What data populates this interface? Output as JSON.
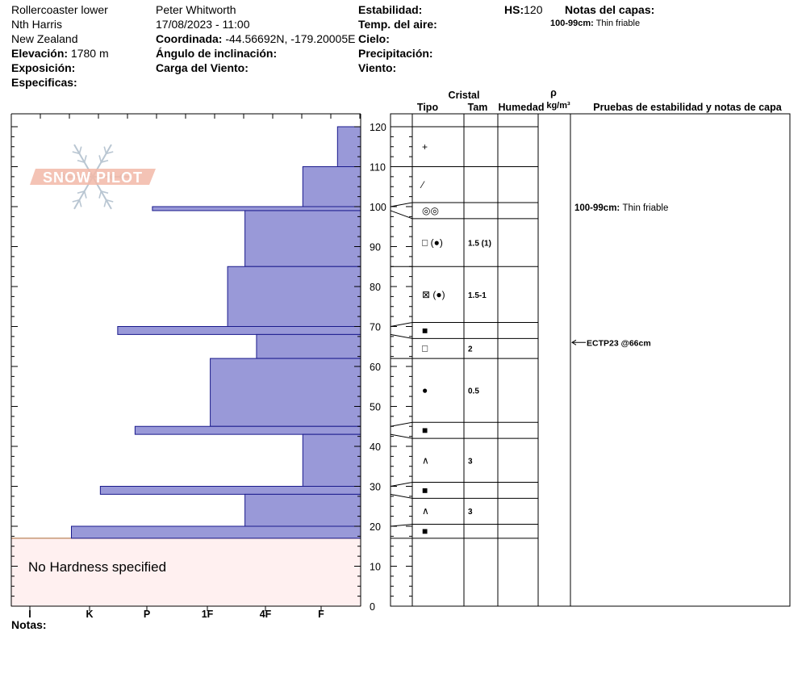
{
  "header": {
    "location": "Rollercoaster lower",
    "range": "Nth Harris",
    "country": "New Zealand",
    "elevation_label": "Elevación:",
    "elevation_value": "1780 m",
    "aspect_label": "Exposición:",
    "specifics_label": "Especificas:",
    "observer": "Peter Whitworth",
    "datetime": "17/08/2023 - 11:00",
    "coord_label": "Coordinada:",
    "coord_value": "-44.56692N, -179.20005E",
    "slope_label": "Ángulo de inclinación:",
    "wind_load_label": "Carga del Viento:",
    "stability_label": "Estabilidad:",
    "air_temp_label": "Temp. del aire:",
    "sky_label": "Cielo:",
    "precip_label": "Precipitación:",
    "wind_label": "Viento:",
    "hs_label": "HS:",
    "hs_value": "120",
    "layer_notes_label": "Notas del capas:",
    "layer_notes_entry_range": "100-99cm:",
    "layer_notes_entry_text": "Thin friable"
  },
  "notes_label": "Notas:",
  "logo_text": "SNOW PILOT",
  "no_hardness_text": "No Hardness specified",
  "colors": {
    "bar_fill": "#9999d8",
    "bar_stroke": "#1a1a8c",
    "no_hardness_fill": "#fff0f0",
    "no_hardness_stroke": "#aa6633",
    "logo": "#f2b8a8"
  },
  "table_headers": {
    "cristal": "Cristal",
    "tipo": "Tipo",
    "tam": "Tam",
    "humedad": "Humedad",
    "rho": "ρ",
    "density_unit": "kg/m³",
    "tests": "Pruebas de estabilidad y notas de capa"
  },
  "chart_data": {
    "type": "bar",
    "orientation": "horizontal",
    "ylabel": "",
    "ylim": [
      0,
      125
    ],
    "y_ticks": [
      0,
      10,
      20,
      30,
      40,
      50,
      60,
      70,
      80,
      90,
      100,
      110,
      120
    ],
    "hardness_scale": [
      "I",
      "K",
      "P",
      "1F",
      "4F",
      "F"
    ],
    "hardness_positions": [
      5,
      4,
      3,
      2,
      1,
      0
    ],
    "no_hardness_range_cm": [
      0,
      17
    ],
    "layers": [
      {
        "top": 120,
        "bottom": 110,
        "hardness": 0.4
      },
      {
        "top": 110,
        "bottom": 100,
        "hardness": 1.0
      },
      {
        "top": 100,
        "bottom": 99,
        "hardness": 3.6
      },
      {
        "top": 99,
        "bottom": 85,
        "hardness": 2.0
      },
      {
        "top": 85,
        "bottom": 70,
        "hardness": 2.3
      },
      {
        "top": 70,
        "bottom": 68,
        "hardness": 4.2
      },
      {
        "top": 68,
        "bottom": 62,
        "hardness": 1.8
      },
      {
        "top": 62,
        "bottom": 45,
        "hardness": 2.6
      },
      {
        "top": 45,
        "bottom": 43,
        "hardness": 3.9
      },
      {
        "top": 43,
        "bottom": 30,
        "hardness": 1.0
      },
      {
        "top": 30,
        "bottom": 28,
        "hardness": 4.5
      },
      {
        "top": 28,
        "bottom": 20,
        "hardness": 2.0
      },
      {
        "top": 20,
        "bottom": 17,
        "hardness": 5.0
      }
    ],
    "crystal_rows": [
      {
        "top": 120,
        "bottom": 110,
        "symbol": "+",
        "size": "",
        "at": 115
      },
      {
        "top": 110,
        "bottom": 101,
        "symbol": "⁄",
        "size": "",
        "at": 105.5
      },
      {
        "top": 101,
        "bottom": 97,
        "symbol": "◎◎",
        "size": "",
        "at": 99
      },
      {
        "top": 97,
        "bottom": 85,
        "symbol": "□ (●)",
        "size": "1.5 (1)",
        "at": 91
      },
      {
        "top": 85,
        "bottom": 71,
        "symbol": "⊠ (●)",
        "size": "1.5-1",
        "at": 78
      },
      {
        "top": 71,
        "bottom": 67,
        "symbol": "■",
        "size": "",
        "at": 69
      },
      {
        "top": 67,
        "bottom": 62,
        "symbol": "□",
        "size": "2",
        "at": 64.5
      },
      {
        "top": 62,
        "bottom": 46,
        "symbol": "●",
        "size": "0.5",
        "at": 54
      },
      {
        "top": 46,
        "bottom": 42,
        "symbol": "■",
        "size": "",
        "at": 44
      },
      {
        "top": 42,
        "bottom": 31,
        "symbol": "∧",
        "size": "3",
        "at": 36.5
      },
      {
        "top": 31,
        "bottom": 27,
        "symbol": "■",
        "size": "",
        "at": 29
      },
      {
        "top": 27,
        "bottom": 20.5,
        "symbol": "∧",
        "size": "3",
        "at": 23.8
      },
      {
        "top": 20.5,
        "bottom": 17,
        "symbol": "■",
        "size": "",
        "at": 18.8
      }
    ],
    "annotations": [
      {
        "depth": 99.8,
        "label": "100-99cm:",
        "text": "Thin friable"
      },
      {
        "depth": 66,
        "label": "",
        "text": "ECTP23 @66cm"
      }
    ]
  }
}
